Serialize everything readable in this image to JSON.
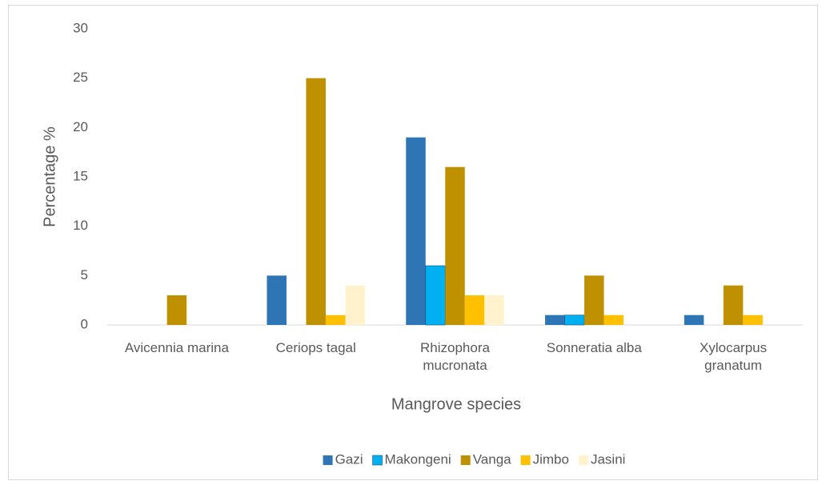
{
  "chart_data": {
    "type": "bar",
    "categories": [
      "Avicennia marina",
      "Ceriops tagal",
      "Rhizophora mucronata",
      "Sonneratia alba",
      "Xylocarpus granatum"
    ],
    "series": [
      {
        "name": "Gazi",
        "color": "#2e75b6",
        "values": [
          0,
          5,
          19,
          1,
          1
        ]
      },
      {
        "name": "Makongeni",
        "color": "#00b0f0",
        "values": [
          0,
          0,
          6,
          1,
          0
        ]
      },
      {
        "name": "Vanga",
        "color": "#bf9000",
        "values": [
          3,
          25,
          16,
          5,
          4
        ]
      },
      {
        "name": "Jimbo",
        "color": "#ffc000",
        "values": [
          0,
          1,
          3,
          1,
          1
        ]
      },
      {
        "name": "Jasini",
        "color": "#fff2cc",
        "values": [
          0,
          4,
          3,
          0,
          0
        ]
      }
    ],
    "xlabel": "Mangrove species",
    "ylabel": "Percentage %",
    "ylim": [
      0,
      30
    ],
    "yticks": [
      0,
      5,
      10,
      15,
      20,
      25,
      30
    ],
    "grid": false,
    "legend": "bottom"
  }
}
